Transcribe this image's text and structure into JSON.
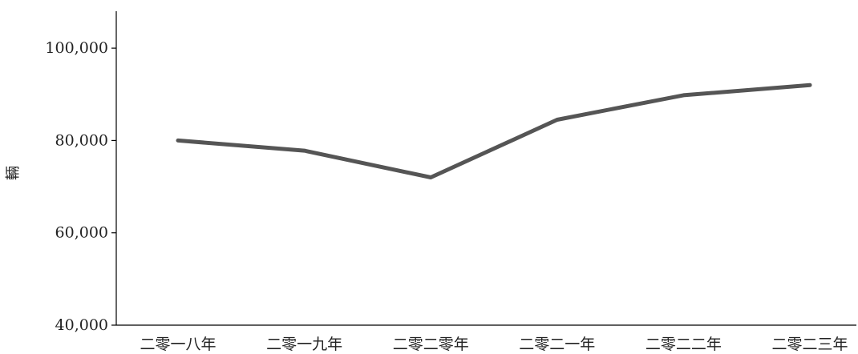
{
  "chart_data": {
    "type": "line",
    "title": "",
    "xlabel": "",
    "ylabel": "輛",
    "categories": [
      "二零一八年",
      "二零一九年",
      "二零二零年",
      "二零二一年",
      "二零二二年",
      "二零二三年"
    ],
    "series": [
      {
        "values": [
          80000,
          77800,
          72000,
          84500,
          89800,
          92000
        ]
      }
    ],
    "ylim": [
      40000,
      108000
    ],
    "yticks": [
      40000,
      60000,
      80000,
      100000
    ],
    "ytick_labels": [
      "40,000",
      "60,000",
      "80,000",
      "100,000"
    ],
    "grid": false,
    "line_color": "#555555",
    "axis_color": "#000000"
  }
}
